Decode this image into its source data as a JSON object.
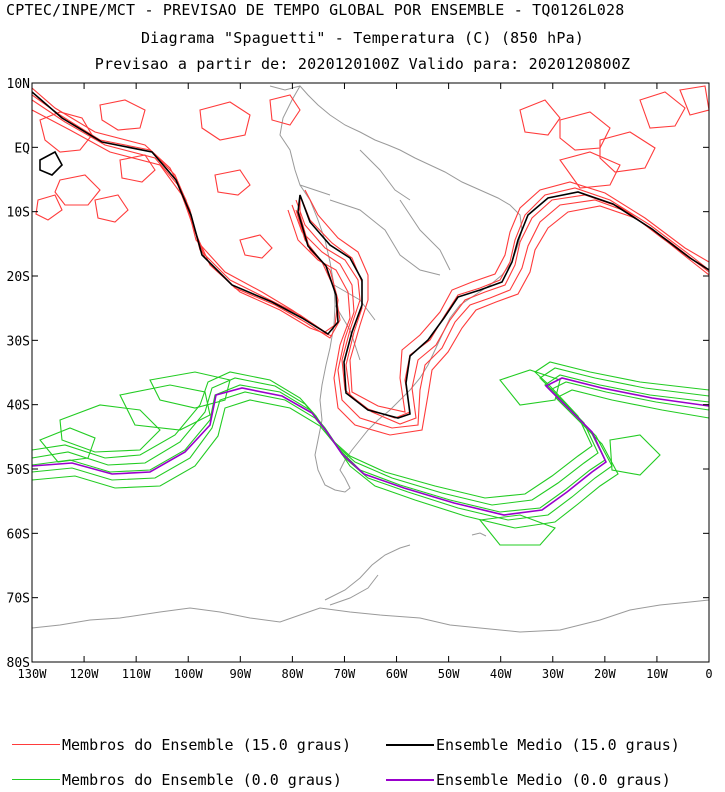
{
  "header": {
    "line1": "CPTEC/INPE/MCT - PREVISAO DE TEMPO GLOBAL POR ENSEMBLE - TQ0126L028",
    "line2": "Diagrama \"Spaguetti\" - Temperatura (C) (850 hPa)",
    "line3": "Previsao a partir de: 2020120100Z  Valido para: 2020120800Z"
  },
  "map": {
    "lat_labels": [
      "10N",
      "EQ",
      "10S",
      "20S",
      "30S",
      "40S",
      "50S",
      "60S",
      "70S",
      "80S"
    ],
    "lat_values": [
      10,
      0,
      -10,
      -20,
      -30,
      -40,
      -50,
      -60,
      -70,
      -80
    ],
    "lon_labels": [
      "130W",
      "120W",
      "110W",
      "100W",
      "90W",
      "80W",
      "70W",
      "60W",
      "50W",
      "40W",
      "30W",
      "20W",
      "10W",
      "0"
    ],
    "lon_values": [
      -130,
      -120,
      -110,
      -100,
      -90,
      -80,
      -70,
      -60,
      -50,
      -40,
      -30,
      -20,
      -10,
      0
    ],
    "colors": {
      "members_15": "#ff3b3b",
      "mean_15": "#000000",
      "members_0": "#22cc22",
      "mean_0": "#9900cc",
      "coast": "#9a9a9a"
    }
  },
  "legend": {
    "members_15_label": "Membros do Ensemble (15.0 graus)",
    "mean_15_label": "Ensemble Medio (15.0 graus)",
    "members_0_label": "Membros do Ensemble (0.0 graus)",
    "mean_0_label": "Ensemble Medio (0.0 graus)"
  }
}
